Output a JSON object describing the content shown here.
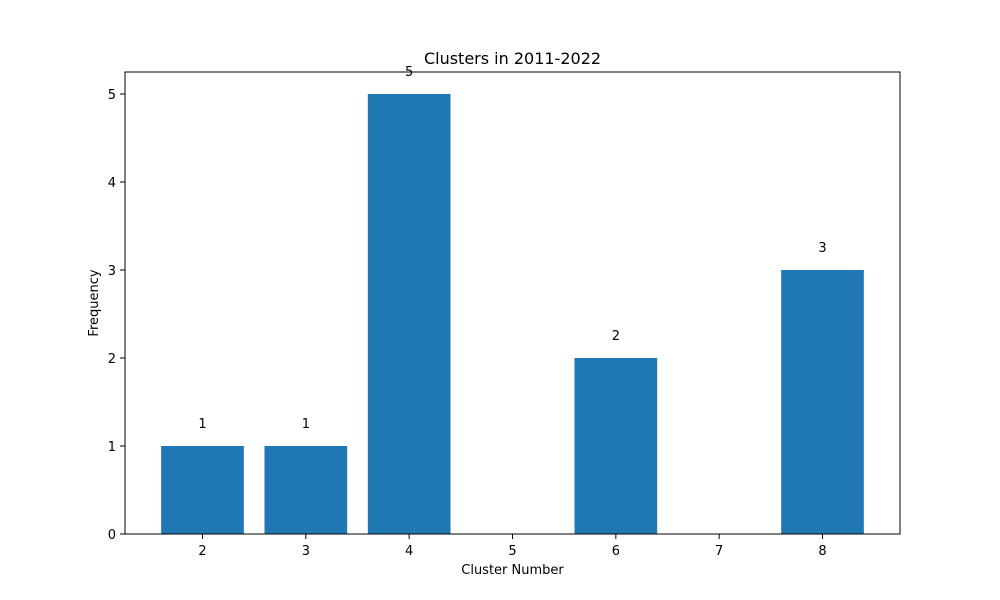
{
  "chart_data": {
    "type": "bar",
    "title": "Clusters in 2011-2022",
    "xlabel": "Cluster Number",
    "ylabel": "Frequency",
    "categories": [
      2,
      3,
      4,
      5,
      6,
      7,
      8
    ],
    "values": [
      1,
      1,
      5,
      0,
      2,
      0,
      3
    ],
    "data_labels": [
      "1",
      "1",
      "5",
      "",
      "2",
      "",
      "3"
    ],
    "xlim": [
      1.25,
      8.75
    ],
    "ylim": [
      0,
      5.25
    ],
    "yticks": [
      0,
      1,
      2,
      3,
      4,
      5
    ],
    "bar_color": "#1f77b4",
    "grid": false,
    "legend": "none"
  }
}
